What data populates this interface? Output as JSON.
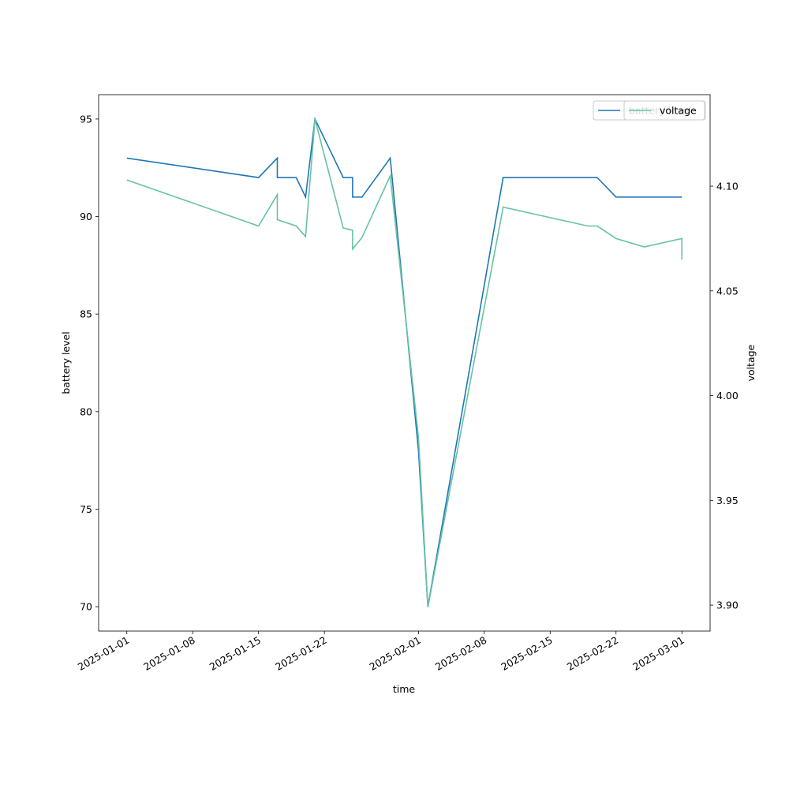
{
  "chart_data": {
    "type": "line",
    "xlabel": "time",
    "ylabel": "battery level",
    "y2label": "voltage",
    "xlim": [
      "2024-12-29",
      "2025-03-04"
    ],
    "xticks": [
      "2025-01-01",
      "2025-01-08",
      "2025-01-15",
      "2025-01-22",
      "2025-02-01",
      "2025-02-08",
      "2025-02-15",
      "2025-02-22",
      "2025-03-01"
    ],
    "ylim": [
      68.75,
      96.25
    ],
    "yticks": [
      70,
      75,
      80,
      85,
      90,
      95
    ],
    "y2lim": [
      3.8876,
      4.1437
    ],
    "y2ticks": [
      {
        "value": 3.9,
        "label": "3.90"
      },
      3.95,
      {
        "value": 4.0,
        "label": "4.00"
      },
      4.05,
      {
        "value": 4.1,
        "label": "4.10"
      }
    ],
    "legend": "upper right",
    "series": [
      {
        "name": "battery level",
        "color": "#1f77b4",
        "x": [
          "2025-01-01",
          "2025-01-15",
          "2025-01-17",
          "2025-01-17",
          "2025-01-19",
          "2025-01-20",
          "2025-01-21",
          "2025-01-24",
          "2025-01-25",
          "2025-01-25",
          "2025-01-26",
          "2025-01-29",
          "2025-02-01",
          "2025-02-02",
          "2025-02-10",
          "2025-02-20",
          "2025-02-22",
          "2025-03-01"
        ],
        "values": [
          93,
          92,
          93,
          92,
          92,
          91,
          95,
          92,
          92,
          91,
          91,
          93,
          78,
          70,
          92,
          92,
          91,
          91
        ]
      },
      {
        "name": "voltage",
        "color": "#66c2a5",
        "axis": "y2",
        "x": [
          "2025-01-01",
          "2025-01-15",
          "2025-01-17",
          "2025-01-17",
          "2025-01-19",
          "2025-01-20",
          "2025-01-21",
          "2025-01-24",
          "2025-01-25",
          "2025-01-25",
          "2025-01-26",
          "2025-01-29",
          "2025-02-01",
          "2025-02-02",
          "2025-02-10",
          "2025-02-19",
          "2025-02-20",
          "2025-02-22",
          "2025-02-25",
          "2025-03-01",
          "2025-03-01"
        ],
        "values": [
          4.103,
          4.081,
          4.096,
          4.084,
          4.081,
          4.076,
          4.132,
          4.08,
          4.079,
          4.07,
          4.0755,
          4.105,
          3.98,
          3.899,
          4.09,
          4.081,
          4.081,
          4.075,
          4.071,
          4.075,
          4.065
        ]
      }
    ]
  }
}
